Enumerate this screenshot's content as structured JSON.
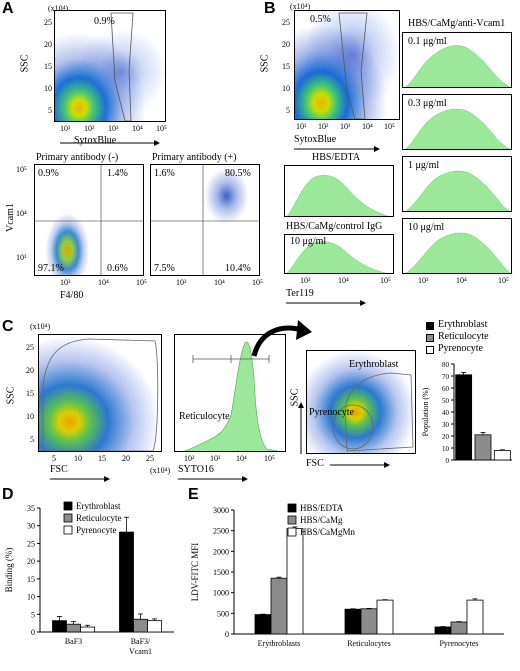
{
  "panels": {
    "A": {
      "letter": "A",
      "top_plot": {
        "ylabel": "SSC",
        "xlabel": "SytoxBlue",
        "scale": "(x10⁴)",
        "gate_pct": "0.9%",
        "yticks": [
          "25",
          "20",
          "15",
          "10",
          "5"
        ],
        "xticks": [
          "10¹",
          "10²",
          "10³",
          "10⁴",
          "10⁵"
        ]
      },
      "left_quad": {
        "title": "Primary antibody (-)",
        "ylabel": "Vcam1",
        "xlabel": "F4/80",
        "q_ul": "0.9%",
        "q_ur": "1.4%",
        "q_ll": "97.1%",
        "q_lr": "0.6%",
        "yticks": [
          "10⁵",
          "10⁴",
          "10³"
        ],
        "xticks": [
          "10³",
          "10⁴",
          "10⁵"
        ]
      },
      "right_quad": {
        "title": "Primary antibody (+)",
        "q_ul": "1.6%",
        "q_ur": "80.5%",
        "q_ll": "7.5%",
        "q_lr": "10.4%",
        "xticks": [
          "10³",
          "10⁴",
          "10⁵"
        ]
      }
    },
    "B": {
      "letter": "B",
      "top_plot": {
        "ylabel": "SSC",
        "xlabel": "SytoxBlue",
        "scale": "(x10⁴)",
        "gate_pct": "0.5%",
        "yticks": [
          "25",
          "20",
          "15",
          "10",
          "5"
        ],
        "xticks": [
          "10¹",
          "10²",
          "10³",
          "10⁴",
          "10⁵"
        ]
      },
      "right_title": "HBS/CaMg/anti-Vcam1",
      "right_hists": [
        "0.1 μg/ml",
        "0.3 μg/ml",
        "1 μg/ml",
        "10 μg/ml"
      ],
      "left_hist1": "HBS/EDTA",
      "left_hist2_title": "HBS/CaMg/control IgG",
      "left_hist2_label": "10 μg/ml",
      "xlabel": "Ter119",
      "xticks": [
        "10³",
        "10⁴",
        "10⁵"
      ]
    },
    "C": {
      "letter": "C",
      "scatter": {
        "ylabel": "SSC",
        "xlabel": "FSC",
        "scale": "(x10⁴)",
        "xscale": "(x10⁴)",
        "yticks": [
          "25",
          "20",
          "15",
          "10",
          "5"
        ],
        "xticks": [
          "5",
          "10",
          "15",
          "20",
          "25"
        ]
      },
      "hist": {
        "xlabel": "SYTO16",
        "label": "Reticulocyte",
        "xticks": [
          "10²",
          "10³",
          "10⁴",
          "10⁵"
        ]
      },
      "gate_plot": {
        "ylabel": "SSC",
        "xlabel": "FSC",
        "gate1": "Erythroblast",
        "gate2": "Pyrenocyte"
      },
      "chart": {
        "ylabel": "Population (%)",
        "yticks": [
          "80",
          "70",
          "60",
          "50",
          "40",
          "30",
          "20",
          "10",
          "0"
        ]
      }
    },
    "D": {
      "letter": "D",
      "chart": {
        "ylabel": "Binding (%)",
        "yticks": [
          "35",
          "30",
          "25",
          "20",
          "15",
          "10",
          "5",
          "0"
        ],
        "xlabels": [
          "BaF3",
          "BaF3/\nVcam1"
        ]
      }
    },
    "E": {
      "letter": "E",
      "chart": {
        "ylabel": "LDV-FITC MFI",
        "yticks": [
          "3000",
          "2500",
          "2000",
          "1500",
          "1000",
          "500",
          "0"
        ]
      }
    }
  },
  "chart_data": [
    {
      "type": "bar",
      "panel": "C",
      "ylabel": "Population (%)",
      "ylim": [
        0,
        80
      ],
      "categories": [
        "Erythroblast",
        "Reticulocyte",
        "Pyrenocyte"
      ],
      "series": [
        {
          "name": "Population",
          "values": [
            71,
            21,
            8
          ],
          "errors": [
            2,
            2,
            0.5
          ]
        }
      ],
      "legend": [
        "Erythroblast",
        "Reticulocyte",
        "Pyrenocyte"
      ],
      "colors": [
        "#000000",
        "#8c8c8c",
        "#ffffff"
      ]
    },
    {
      "type": "bar",
      "panel": "D",
      "ylabel": "Binding (%)",
      "ylim": [
        0,
        35
      ],
      "categories": [
        "BaF3",
        "BaF3/Vcam1"
      ],
      "series": [
        {
          "name": "Erythroblast",
          "values": [
            3.2,
            28.2
          ],
          "errors": [
            1.2,
            4.2
          ]
        },
        {
          "name": "Reticulocyte",
          "values": [
            2.2,
            3.6
          ],
          "errors": [
            0.8,
            1.5
          ]
        },
        {
          "name": "Pyrenocyte",
          "values": [
            1.4,
            3.2
          ],
          "errors": [
            0.5,
            0.5
          ]
        }
      ],
      "colors": [
        "#000000",
        "#8c8c8c",
        "#ffffff"
      ]
    },
    {
      "type": "bar",
      "panel": "E",
      "ylabel": "LDV-FITC MFI",
      "ylim": [
        0,
        3000
      ],
      "categories": [
        "Erythroblasts",
        "Reticulocytes",
        "Pyrenocytes"
      ],
      "series": [
        {
          "name": "HBS/EDTA",
          "values": [
            470,
            600,
            170
          ],
          "errors": [
            10,
            10,
            10
          ]
        },
        {
          "name": "HBS/CaMg",
          "values": [
            1350,
            610,
            290
          ],
          "errors": [
            25,
            10,
            10
          ]
        },
        {
          "name": "HBS/CaMgMn",
          "values": [
            2550,
            820,
            820
          ],
          "errors": [
            40,
            10,
            30
          ]
        }
      ],
      "colors": [
        "#000000",
        "#8c8c8c",
        "#ffffff"
      ]
    }
  ]
}
